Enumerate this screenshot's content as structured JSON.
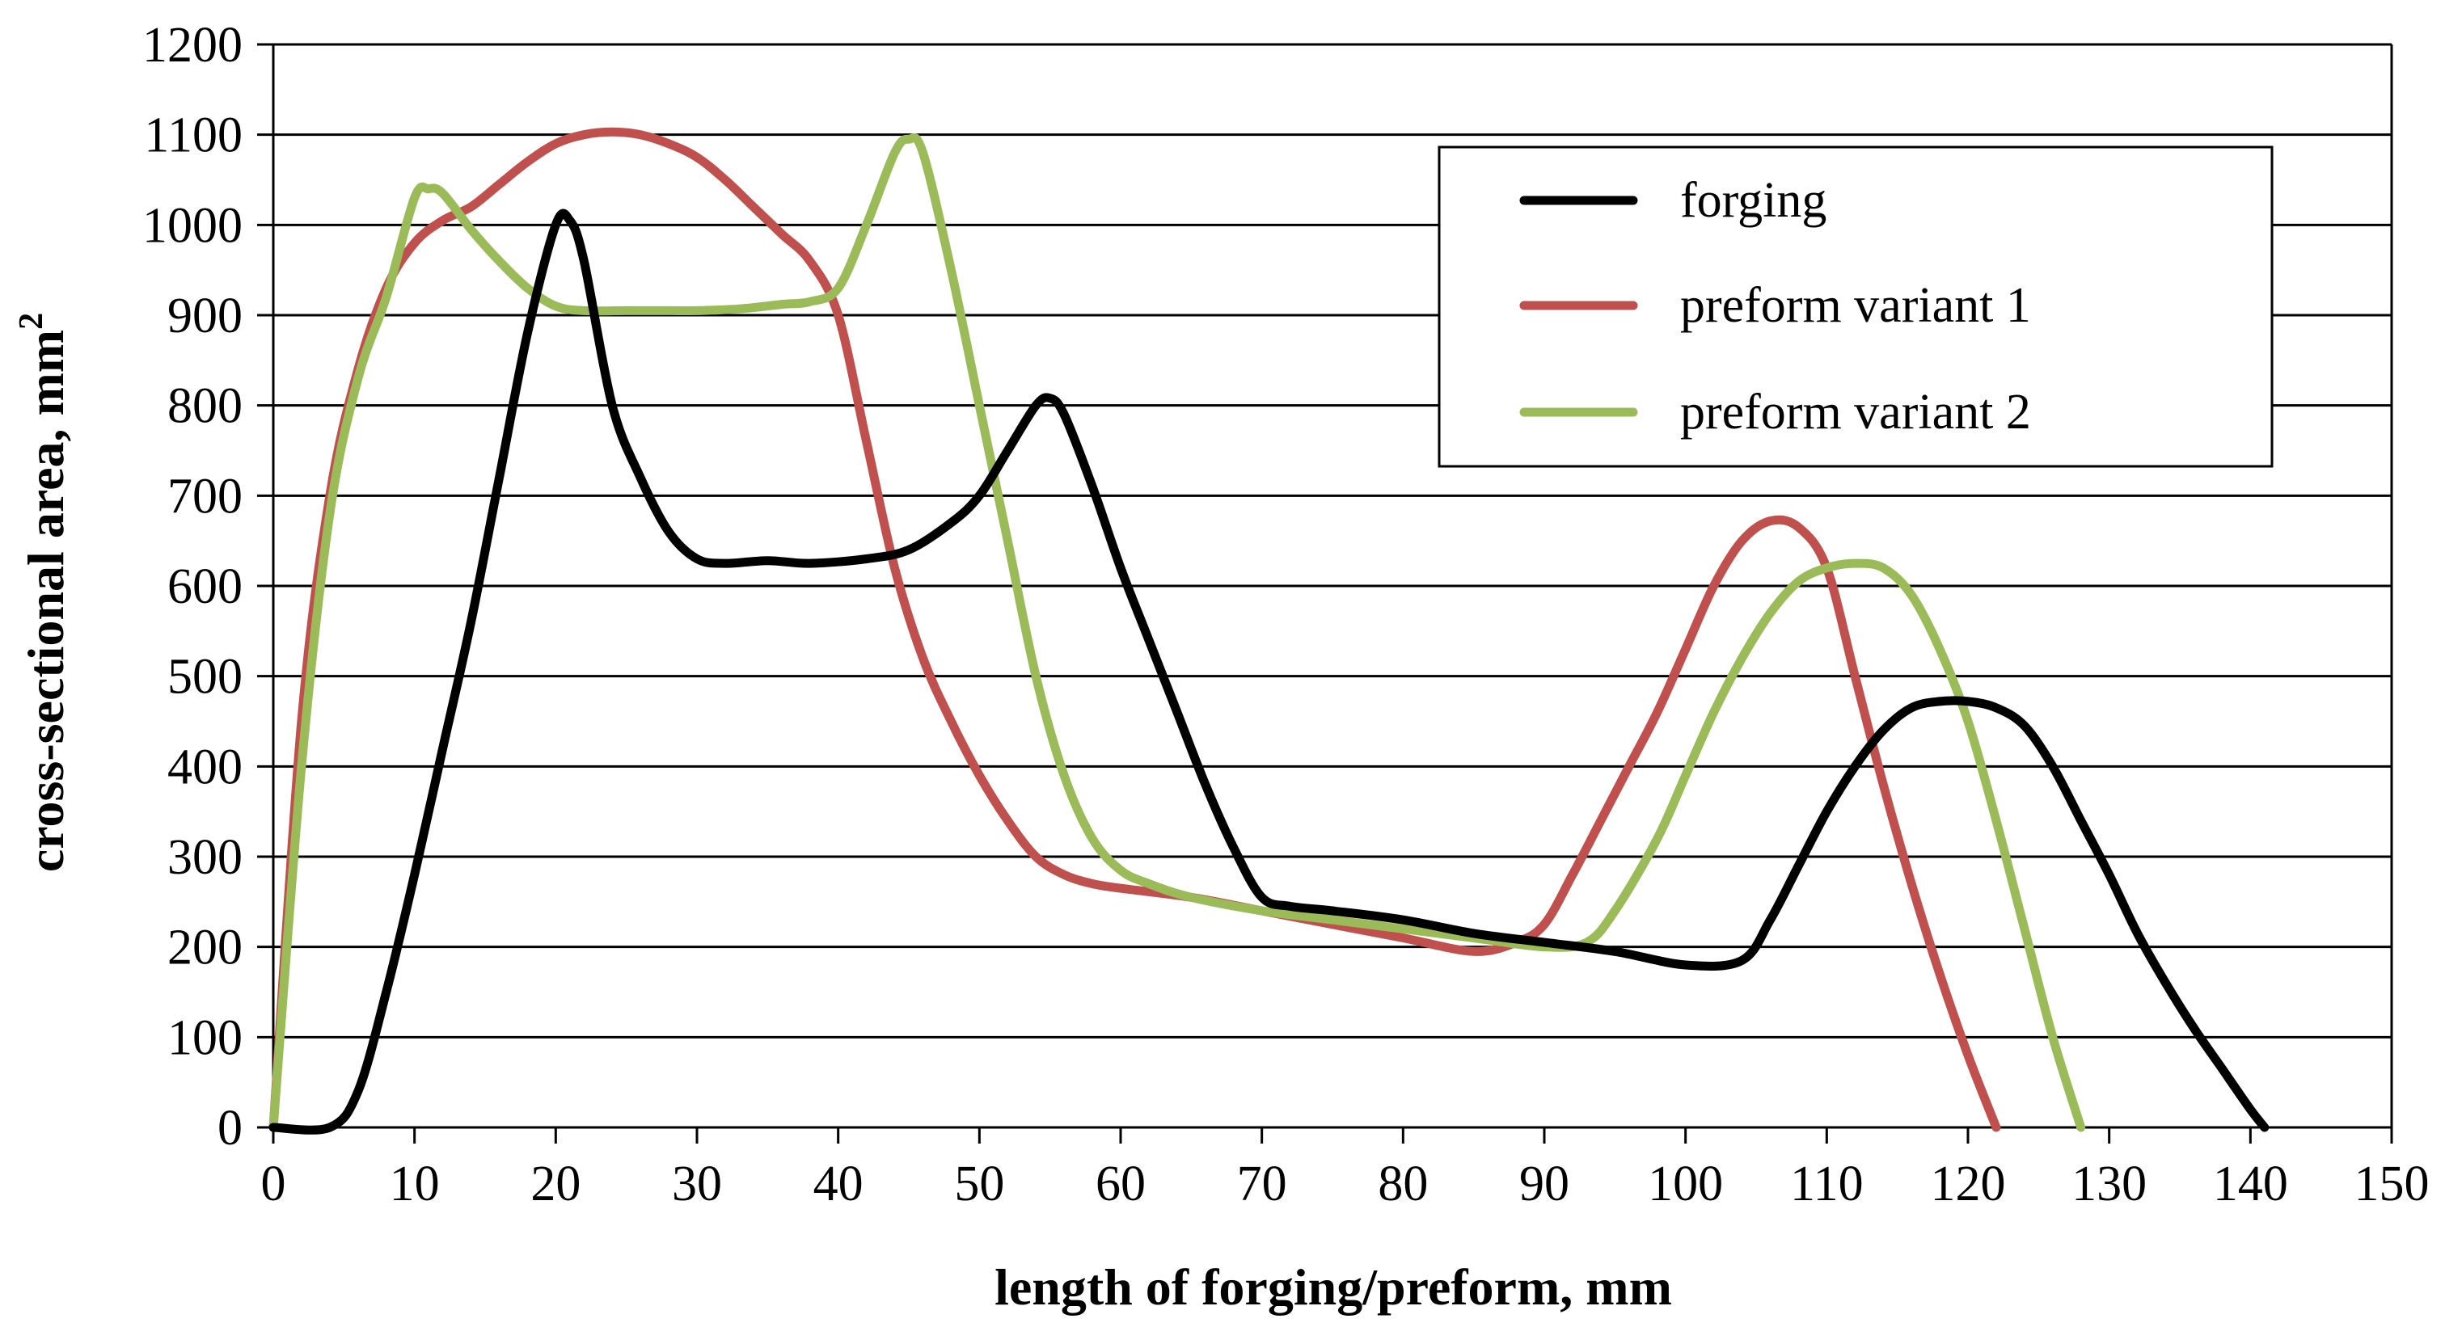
{
  "chart_data": {
    "type": "line",
    "title": "",
    "xlabel": "length of forging/preform, mm",
    "ylabel": "cross-sectional area, mm",
    "ylabel_superscript": "2",
    "xlim": [
      0,
      150
    ],
    "ylim": [
      0,
      1200
    ],
    "xticks": [
      "0",
      "10",
      "20",
      "30",
      "40",
      "50",
      "60",
      "70",
      "80",
      "90",
      "100",
      "110",
      "120",
      "130",
      "140",
      "150"
    ],
    "yticks": [
      "0",
      "100",
      "200",
      "300",
      "400",
      "500",
      "600",
      "700",
      "800",
      "900",
      "1000",
      "1100",
      "1200"
    ],
    "grid": "horizontal",
    "legend_position": "top-right",
    "series": [
      {
        "name": "forging",
        "color": "#000000",
        "x": [
          0,
          4,
          6,
          8,
          10,
          12,
          14,
          16,
          18,
          20,
          21,
          22,
          24,
          26,
          28,
          30,
          32,
          35,
          38,
          42,
          45,
          48,
          50,
          52,
          54,
          55,
          56,
          58,
          60,
          62,
          64,
          66,
          68,
          70,
          72,
          75,
          80,
          85,
          90,
          95,
          100,
          104,
          106,
          108,
          110,
          112,
          114,
          116,
          118,
          120,
          122,
          124,
          126,
          128,
          130,
          132,
          134,
          136,
          138,
          140,
          141
        ],
        "values": [
          0,
          0,
          40,
          150,
          280,
          420,
          560,
          720,
          880,
          1000,
          1005,
          960,
          800,
          720,
          660,
          630,
          625,
          628,
          625,
          630,
          640,
          670,
          700,
          750,
          800,
          808,
          790,
          710,
          620,
          540,
          460,
          380,
          310,
          255,
          245,
          240,
          230,
          215,
          205,
          195,
          180,
          185,
          230,
          290,
          350,
          400,
          440,
          465,
          472,
          472,
          465,
          445,
          400,
          340,
          280,
          215,
          160,
          110,
          65,
          20,
          0
        ]
      },
      {
        "name": "preform variant 1",
        "color": "#c0504d",
        "x": [
          0,
          2,
          4,
          6,
          8,
          10,
          12,
          14,
          16,
          18,
          20,
          22,
          24,
          26,
          28,
          30,
          32,
          34,
          36,
          38,
          40,
          42,
          44,
          46,
          48,
          50,
          52,
          54,
          56,
          58,
          60,
          65,
          70,
          75,
          80,
          85,
          88,
          90,
          92,
          94,
          96,
          98,
          100,
          102,
          104,
          106,
          108,
          110,
          112,
          114,
          116,
          118,
          120,
          122
        ],
        "values": [
          0,
          450,
          700,
          840,
          930,
          980,
          1005,
          1020,
          1045,
          1070,
          1090,
          1100,
          1103,
          1100,
          1090,
          1075,
          1050,
          1020,
          990,
          960,
          900,
          760,
          620,
          520,
          450,
          390,
          340,
          300,
          280,
          270,
          265,
          255,
          240,
          225,
          210,
          195,
          205,
          225,
          280,
          340,
          400,
          460,
          530,
          600,
          650,
          672,
          665,
          620,
          500,
          380,
          270,
          170,
          80,
          0
        ]
      },
      {
        "name": "preform variant 2",
        "color": "#9bbb59",
        "x": [
          0,
          2,
          4,
          6,
          8,
          10,
          11,
          12,
          14,
          16,
          18,
          20,
          22,
          25,
          28,
          30,
          33,
          36,
          38,
          40,
          42,
          44,
          45,
          46,
          48,
          50,
          52,
          54,
          56,
          58,
          60,
          62,
          65,
          70,
          75,
          80,
          85,
          90,
          93,
          95,
          98,
          100,
          102,
          104,
          106,
          108,
          110,
          112,
          114,
          116,
          118,
          120,
          122,
          124,
          126,
          128
        ],
        "values": [
          0,
          400,
          680,
          830,
          920,
          1030,
          1040,
          1035,
          995,
          960,
          930,
          910,
          905,
          905,
          905,
          905,
          907,
          912,
          915,
          930,
          1000,
          1080,
          1095,
          1080,
          950,
          800,
          650,
          500,
          390,
          320,
          285,
          270,
          255,
          240,
          230,
          220,
          210,
          200,
          205,
          240,
          320,
          390,
          460,
          520,
          570,
          605,
          620,
          625,
          620,
          590,
          530,
          450,
          340,
          220,
          100,
          0
        ]
      }
    ]
  }
}
